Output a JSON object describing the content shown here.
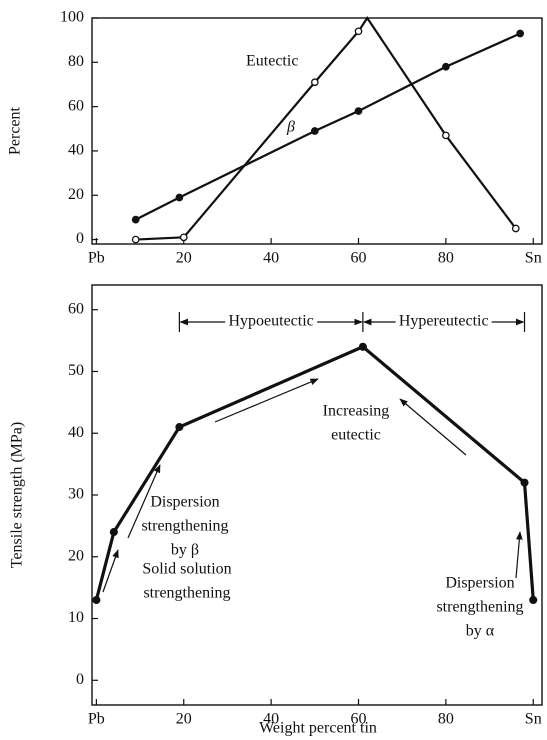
{
  "chart_data": [
    {
      "type": "line",
      "ylabel": "Percent",
      "xlim": [
        -1,
        102
      ],
      "ylim": [
        -2,
        100
      ],
      "xticks": [
        {
          "value": 0,
          "label": "Pb"
        },
        20,
        40,
        60,
        80,
        {
          "value": 100,
          "label": "Sn"
        }
      ],
      "yticks": [
        0,
        20,
        40,
        60,
        80,
        100
      ],
      "series": [
        {
          "name": "Eutectic",
          "color": "#111111",
          "marker": "open",
          "x": [
            9,
            20,
            50,
            60,
            62,
            80,
            96
          ],
          "values": [
            0,
            1,
            71,
            94,
            100,
            47,
            5
          ],
          "markers": [
            true,
            true,
            true,
            true,
            false,
            true,
            true
          ]
        },
        {
          "name": "β",
          "color": "#111111",
          "marker": "filled",
          "x": [
            9,
            19,
            50,
            60,
            80,
            97
          ],
          "values": [
            9,
            19,
            49,
            58,
            78,
            93
          ]
        }
      ]
    },
    {
      "type": "line",
      "ylabel": "Tensile strength (MPa)",
      "xlabel": "Weight percent tin",
      "xlim": [
        -1,
        102
      ],
      "ylim": [
        -4,
        64
      ],
      "xticks": [
        {
          "value": 0,
          "label": "Pb"
        },
        20,
        40,
        60,
        80,
        {
          "value": 100,
          "label": "Sn"
        }
      ],
      "yticks": [
        0,
        10,
        20,
        30,
        40,
        50,
        60
      ],
      "series": [
        {
          "color": "#111111",
          "marker": "filled",
          "x": [
            0,
            4,
            19,
            61,
            98,
            100
          ],
          "values": [
            13,
            24,
            41,
            54,
            32,
            13
          ]
        }
      ],
      "annotations": [
        [
          "Hypoeutectic"
        ],
        [
          "Hypereutectic"
        ],
        [
          "Increasing",
          "eutectic"
        ],
        [
          "Dispersion",
          "strengthening",
          "by β"
        ],
        [
          "Solid solution",
          "strengthening"
        ],
        [
          "Dispersion",
          "strengthening",
          "by α"
        ]
      ]
    }
  ]
}
